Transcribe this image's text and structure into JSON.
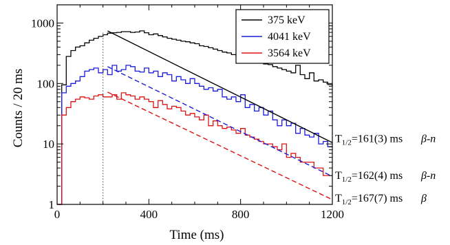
{
  "chart_data": {
    "type": "line",
    "xlabel": "Time (ms)",
    "ylabel": "Counts / 20 ms",
    "xlim": [
      0,
      1200
    ],
    "ylim": [
      1,
      2000
    ],
    "y_scale": "log",
    "x_ticks": [
      "0",
      "400",
      "800",
      "1200"
    ],
    "y_ticks": [
      {
        "value": 1,
        "label": "1"
      },
      {
        "value": 10,
        "label": "10"
      },
      {
        "value": 100,
        "label": "100"
      },
      {
        "value": 1000,
        "label": "1000"
      }
    ],
    "bin_width": 20,
    "vline_x": 200,
    "legend_position": "top-right",
    "series": [
      {
        "name": "375 keV",
        "color": "#000000",
        "style": "histogram",
        "values": [
          1,
          95,
          280,
          350,
          400,
          420,
          470,
          520,
          560,
          600,
          640,
          680,
          690,
          700,
          720,
          720,
          700,
          710,
          740,
          690,
          640,
          660,
          620,
          590,
          560,
          540,
          520,
          500,
          490,
          470,
          455,
          420,
          410,
          390,
          370,
          350,
          330,
          320,
          300,
          280,
          275,
          260,
          250,
          235,
          225,
          210,
          205,
          190,
          180,
          170,
          160,
          150,
          200,
          140,
          120,
          150,
          110,
          115,
          105,
          96,
          90
        ]
      },
      {
        "name": "4041 keV",
        "color": "#1a1adb",
        "style": "histogram",
        "values": [
          1,
          70,
          90,
          100,
          110,
          130,
          160,
          170,
          180,
          150,
          170,
          140,
          200,
          160,
          170,
          200,
          190,
          160,
          155,
          180,
          150,
          160,
          130,
          150,
          140,
          110,
          130,
          115,
          100,
          120,
          100,
          90,
          80,
          85,
          75,
          80,
          60,
          55,
          60,
          50,
          65,
          40,
          45,
          35,
          40,
          30,
          35,
          25,
          20,
          25,
          20,
          22,
          15,
          18,
          14,
          13,
          15,
          10,
          11,
          9,
          9
        ]
      },
      {
        "name": "3564 keV",
        "color": "#dd1111",
        "style": "histogram",
        "values": [
          1,
          30,
          40,
          50,
          55,
          60,
          58,
          55,
          62,
          65,
          60,
          60,
          65,
          55,
          70,
          65,
          62,
          55,
          60,
          55,
          50,
          40,
          52,
          45,
          38,
          42,
          40,
          35,
          30,
          32,
          28,
          25,
          30,
          20,
          24,
          20,
          18,
          19,
          17,
          15,
          18,
          14,
          13,
          12,
          11,
          10,
          10,
          9,
          8,
          10,
          6,
          7,
          6,
          5,
          5,
          5,
          4,
          4,
          3,
          3,
          3
        ]
      }
    ],
    "fits": [
      {
        "series": "375 keV",
        "color": "#000000",
        "dashed": false,
        "x_range": [
          220,
          1200
        ],
        "y_start": 740,
        "y_end": 10.5
      },
      {
        "series": "4041 keV",
        "color": "#1a1adb",
        "dashed": true,
        "x_range": [
          220,
          1200
        ],
        "y_start": 190,
        "y_end": 2.9
      },
      {
        "series": "3564 keV",
        "color": "#dd1111",
        "dashed": true,
        "x_range": [
          220,
          1200
        ],
        "y_start": 72,
        "y_end": 1.2
      }
    ],
    "annotations": [
      {
        "sym": "T",
        "sub": "1/2",
        "value": "=161(3) ms",
        "mode": "β-n",
        "y": 12.5
      },
      {
        "sym": "T",
        "sub": "1/2",
        "value": "=162(4) ms",
        "mode": "β-n",
        "y": 3.1
      },
      {
        "sym": "T",
        "sub": "1/2",
        "value": "=167(7) ms",
        "mode": "β",
        "y": 1.3
      }
    ]
  }
}
